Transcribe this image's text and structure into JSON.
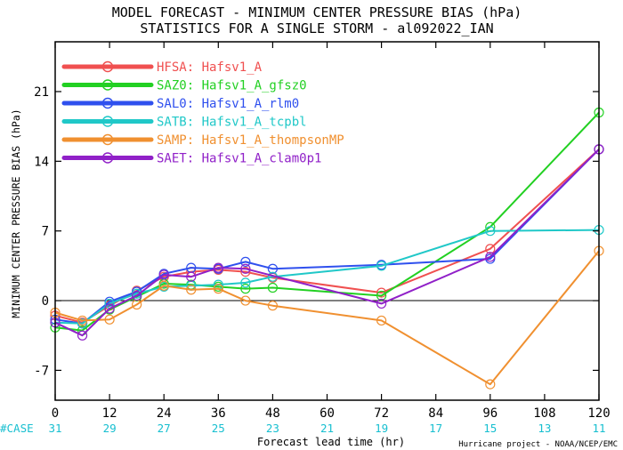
{
  "chart_data": {
    "type": "line",
    "title": "MODEL FORECAST - MINIMUM CENTER PRESSURE BIAS (hPa)",
    "subtitle": "STATISTICS FOR A SINGLE STORM - al092022_IAN",
    "xlabel": "Forecast lead time (hr)",
    "ylabel": "MINIMUM CENTER PRESSURE BIAS (hPa)",
    "credit": "Hurricane project - NOAA/NCEP/EMC",
    "xlim": [
      0,
      120
    ],
    "ylim": [
      -10,
      26
    ],
    "xticks": [
      0,
      12,
      24,
      36,
      48,
      60,
      72,
      84,
      96,
      108,
      120
    ],
    "yticks": [
      -7,
      0,
      7,
      14,
      21
    ],
    "ytick_labels": [
      "-7",
      "0",
      "7",
      "14",
      "21"
    ],
    "zero_line": 0,
    "case_label": "#CASE",
    "cases": [
      31,
      29,
      27,
      25,
      23,
      21,
      19,
      17,
      15,
      13,
      11
    ],
    "legend_position": "top-left",
    "series": [
      {
        "name": "HFSA:",
        "label": "Hafsv1_A",
        "color": "#f05050",
        "x": [
          0,
          6,
          12,
          18,
          24,
          30,
          36,
          42,
          48,
          72,
          96,
          120
        ],
        "y": [
          -1.5,
          -2.2,
          -0.5,
          1.0,
          2.4,
          2.9,
          3.1,
          2.9,
          2.3,
          0.8,
          5.2,
          15.2
        ]
      },
      {
        "name": "SAZ0:",
        "label": "Hafsv1_A_gfsz0",
        "color": "#22d022",
        "x": [
          0,
          6,
          12,
          18,
          24,
          30,
          36,
          42,
          48,
          72,
          96,
          120
        ],
        "y": [
          -2.7,
          -3.0,
          -0.9,
          0.4,
          1.7,
          1.6,
          1.4,
          1.2,
          1.3,
          0.5,
          7.4,
          18.9
        ]
      },
      {
        "name": "SAL0:",
        "label": "Hafsv1_A_rlm0",
        "color": "#2f50ee",
        "x": [
          0,
          6,
          12,
          18,
          24,
          30,
          36,
          42,
          48,
          72,
          96,
          120
        ],
        "y": [
          -1.9,
          -2.3,
          -0.1,
          0.9,
          2.7,
          3.3,
          3.2,
          3.9,
          3.2,
          3.6,
          4.2,
          15.2
        ]
      },
      {
        "name": "SATB:",
        "label": "Hafsv1_A_tcpbl",
        "color": "#20c8c8",
        "x": [
          0,
          6,
          12,
          18,
          24,
          30,
          36,
          42,
          48,
          72,
          96,
          120
        ],
        "y": [
          -2.2,
          -2.3,
          -0.3,
          0.7,
          1.4,
          1.5,
          1.6,
          1.8,
          2.4,
          3.5,
          7.0,
          7.1
        ]
      },
      {
        "name": "SAMP:",
        "label": "Hafsv1_A_thompsonMP",
        "color": "#f09030",
        "x": [
          0,
          6,
          12,
          18,
          24,
          30,
          36,
          42,
          48,
          72,
          96,
          120
        ],
        "y": [
          -1.2,
          -2.0,
          -1.9,
          -0.4,
          1.5,
          1.1,
          1.2,
          0.0,
          -0.5,
          -2.0,
          -8.4,
          5.0
        ]
      },
      {
        "name": "SAET:",
        "label": "Hafsv1_A_clam0p1",
        "color": "#9020c8",
        "x": [
          0,
          6,
          12,
          18,
          24,
          30,
          36,
          42,
          48,
          72,
          96,
          120
        ],
        "y": [
          -2.2,
          -3.5,
          -0.8,
          0.5,
          2.6,
          2.4,
          3.3,
          3.2,
          null,
          -0.3,
          4.4,
          15.2
        ]
      }
    ]
  }
}
